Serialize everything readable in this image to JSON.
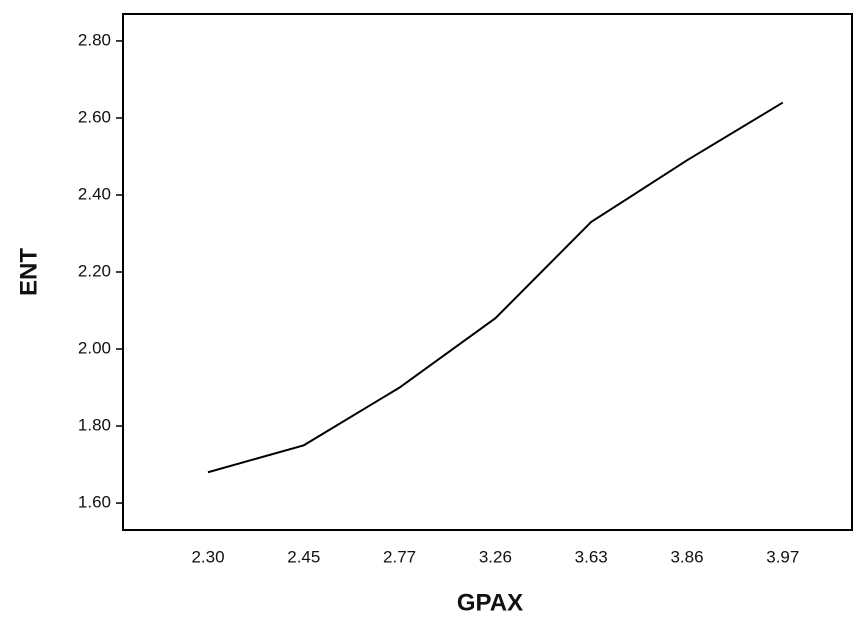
{
  "chart_data": {
    "type": "line",
    "x_label": "GPAX",
    "y_label": "ENT",
    "categories": [
      "2.30",
      "2.45",
      "2.77",
      "3.26",
      "3.63",
      "3.86",
      "3.97"
    ],
    "series": [
      {
        "color": "#000000",
        "values": [
          1.68,
          1.75,
          1.9,
          2.08,
          2.33,
          2.49,
          2.64
        ]
      }
    ],
    "ylim": [
      1.53,
      2.87
    ],
    "yticks": [
      {
        "value": 1.6,
        "label": "1.60"
      },
      {
        "value": 1.8,
        "label": "1.80"
      },
      {
        "value": 2.0,
        "label": "2.00"
      },
      {
        "value": 2.2,
        "label": "2.20"
      },
      {
        "value": 2.4,
        "label": "2.40"
      },
      {
        "value": 2.6,
        "label": "2.60"
      },
      {
        "value": 2.8,
        "label": "2.80"
      }
    ]
  }
}
